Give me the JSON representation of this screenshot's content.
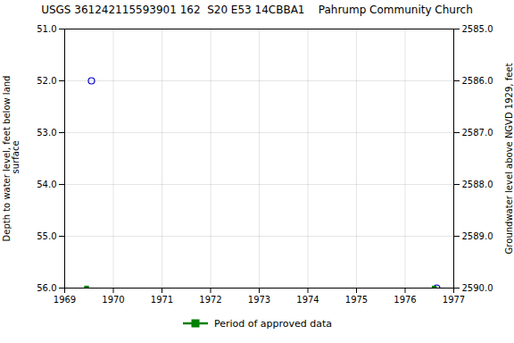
{
  "chart_data": {
    "type": "scatter",
    "title": "USGS 361242115593901 162  S20 E53 14CBBA1    Pahrump Community Church",
    "ylabel": "Depth to water level, feet below land\n surface",
    "y2label": "Groundwater level above NGVD 1929, feet",
    "xlim": [
      1969.0,
      1977.0
    ],
    "xticks": [
      1969,
      1970,
      1971,
      1972,
      1973,
      1974,
      1975,
      1976,
      1977
    ],
    "ylim": [
      56.0,
      51.0
    ],
    "yticks": [
      {
        "value": 51.0,
        "label": "51.0"
      },
      {
        "value": 52.0,
        "label": "52.0"
      },
      {
        "value": 53.0,
        "label": "53.0"
      },
      {
        "value": 54.0,
        "label": "54.0"
      },
      {
        "value": 55.0,
        "label": "55.0"
      },
      {
        "value": 56.0,
        "label": "56.0"
      }
    ],
    "y2lim": [
      2590.0,
      2585.0
    ],
    "y2ticks": [
      {
        "value": 2590.0,
        "label": "2590.0"
      },
      {
        "value": 2589.0,
        "label": "2589.0"
      },
      {
        "value": 2588.0,
        "label": "2588.0"
      },
      {
        "value": 2587.0,
        "label": "2587.0"
      },
      {
        "value": 2586.0,
        "label": "2586.0"
      },
      {
        "value": 2585.0,
        "label": "2585.0"
      }
    ],
    "grid": true,
    "series": [
      {
        "color": "#0000cc",
        "marker": "open_circle",
        "x": [
          1969.55,
          1976.65
        ],
        "values": [
          52.0,
          56.0
        ]
      },
      {
        "name": "Period of approved data",
        "color": "#008000",
        "marker": "square",
        "x": [
          1969.45,
          1976.6
        ],
        "values": [
          56.0,
          56.0
        ]
      }
    ]
  }
}
